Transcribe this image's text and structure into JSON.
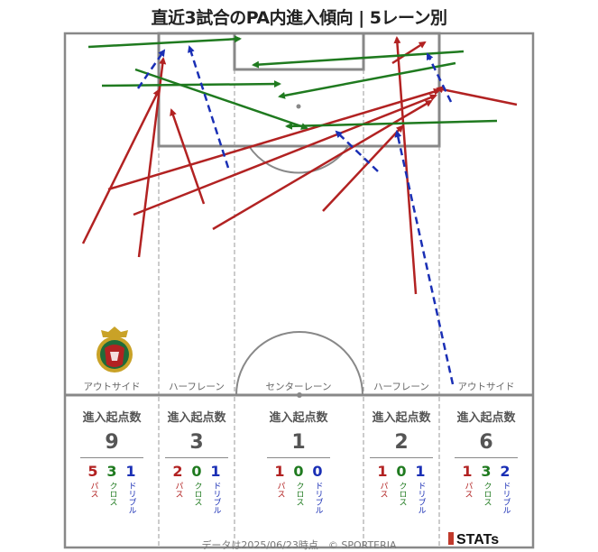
{
  "title": "直近3試合のPA内進入傾向 | 5レーン別",
  "lanes": [
    {
      "label": "アウトサイド",
      "header": "進入起点数",
      "total": "9",
      "pass": "5",
      "cross": "3",
      "dribble": "1"
    },
    {
      "label": "ハーフレーン",
      "header": "進入起点数",
      "total": "3",
      "pass": "2",
      "cross": "0",
      "dribble": "1"
    },
    {
      "label": "センターレーン",
      "header": "進入起点数",
      "total": "1",
      "pass": "1",
      "cross": "0",
      "dribble": "0"
    },
    {
      "label": "ハーフレーン",
      "header": "進入起点数",
      "total": "2",
      "pass": "1",
      "cross": "0",
      "dribble": "1"
    },
    {
      "label": "アウトサイド",
      "header": "進入起点数",
      "total": "6",
      "pass": "1",
      "cross": "3",
      "dribble": "2"
    }
  ],
  "type_labels": {
    "pass": "パス",
    "cross": "クロス",
    "dribble": "ドリブル"
  },
  "colors": {
    "pass": "#b22222",
    "cross": "#1f7a1f",
    "dribble": "#1a2fb5",
    "lines": "#888888"
  },
  "footer": "データは2025/06/23時点　© SPORTERIA",
  "brand": "STATs"
}
